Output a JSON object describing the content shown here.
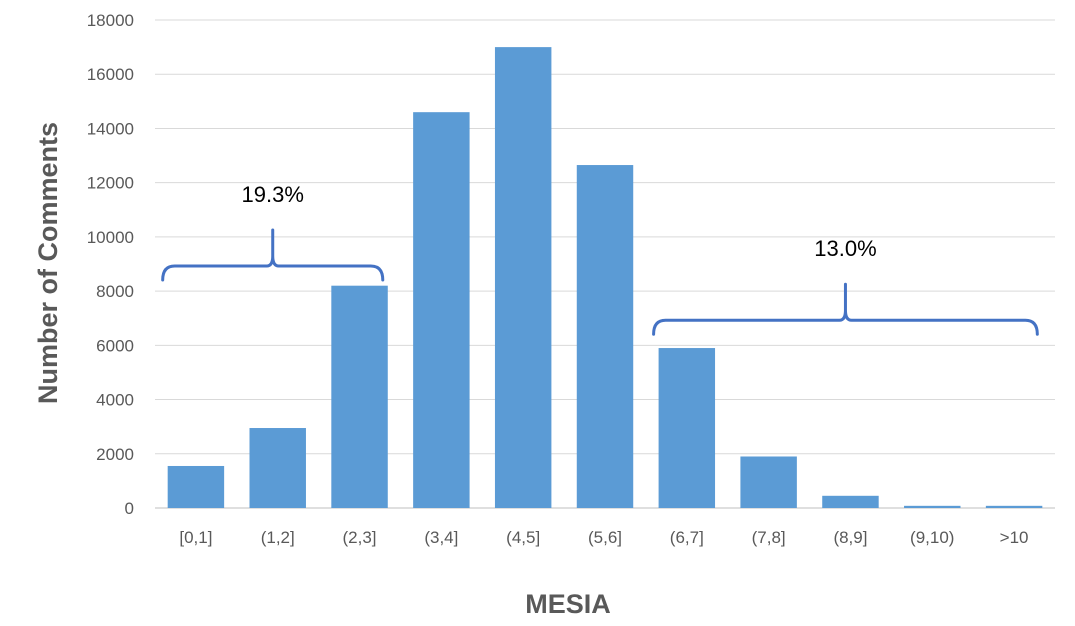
{
  "chart_data": {
    "type": "bar",
    "categories": [
      "[0,1]",
      "(1,2]",
      "(2,3]",
      "(3,4]",
      "(4,5]",
      "(5,6]",
      "(6,7]",
      "(7,8]",
      "(8,9]",
      "(9,10)",
      ">10"
    ],
    "values": [
      1550,
      2950,
      8200,
      14600,
      17000,
      12650,
      5900,
      1900,
      450,
      80,
      80
    ],
    "title": "",
    "xlabel": "MESIA",
    "ylabel": "Number of Comments",
    "ylim": [
      0,
      18000
    ],
    "yticks": [
      0,
      2000,
      4000,
      6000,
      8000,
      10000,
      12000,
      14000,
      16000,
      18000
    ],
    "grid": true,
    "bar_color": "#5B9BD5",
    "annotations": [
      {
        "text": "19.3%",
        "from_category": "[0,1]",
        "to_category": "(2,3]",
        "at_value": 9000
      },
      {
        "text": "13.0%",
        "from_category": "(6,7]",
        "to_category": ">10",
        "at_value": 7000
      }
    ],
    "bracket_color": "#4472C4"
  }
}
